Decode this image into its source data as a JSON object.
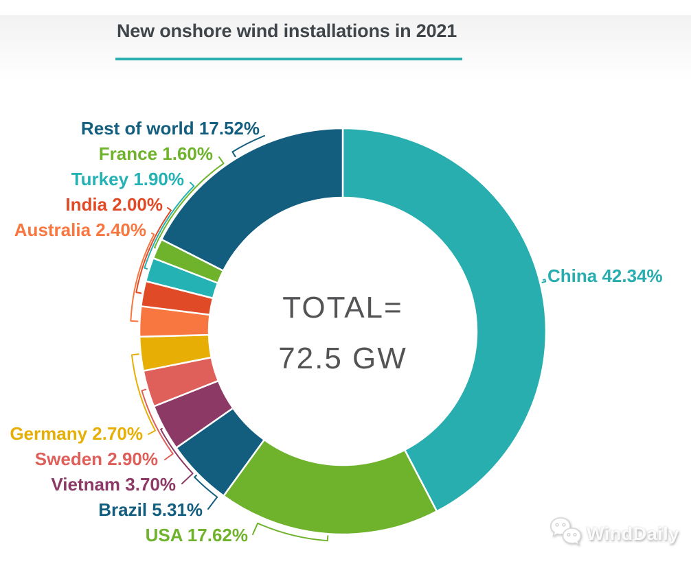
{
  "title": "New onshore wind installations in 2021",
  "colors": {
    "accent": "#2aafb0",
    "title_text": "#404549",
    "center_text": "#545456"
  },
  "center": {
    "line1": "TOTAL=",
    "line2": "72.5 GW"
  },
  "watermark": {
    "brand": "WindDaily",
    "icon": "wechat-icon"
  },
  "chart_data": {
    "type": "pie",
    "subtype": "donut",
    "title": "New onshore wind installations in 2021",
    "total_value": 72.5,
    "total_units": "GW",
    "center_label": "TOTAL= 72.5 GW",
    "value_units": "percent",
    "start_angle_deg": 0,
    "direction": "clockwise",
    "legend_position": "around",
    "slices": [
      {
        "name": "China",
        "value": 42.34,
        "label": "China 42.34%",
        "color": "#29aeb0"
      },
      {
        "name": "USA",
        "value": 17.62,
        "label": "USA 17.62%",
        "color": "#6fb32d"
      },
      {
        "name": "Brazil",
        "value": 5.31,
        "label": "Brazil 5.31%",
        "color": "#135e7f"
      },
      {
        "name": "Vietnam",
        "value": 3.7,
        "label": "Vietnam 3.70%",
        "color": "#8c3a65"
      },
      {
        "name": "Sweden",
        "value": 2.9,
        "label": "Sweden 2.90%",
        "color": "#df5f5a"
      },
      {
        "name": "Germany",
        "value": 2.7,
        "label": "Germany 2.70%",
        "color": "#e7af06"
      },
      {
        "name": "Australia",
        "value": 2.4,
        "label": "Australia 2.40%",
        "color": "#f8763f"
      },
      {
        "name": "India",
        "value": 2.0,
        "label": "India 2.00%",
        "color": "#e14a26"
      },
      {
        "name": "Turkey",
        "value": 1.9,
        "label": "Turkey 1.90%",
        "color": "#24b2b4"
      },
      {
        "name": "France",
        "value": 1.6,
        "label": "France 1.60%",
        "color": "#6fb32d"
      },
      {
        "name": "Rest of world",
        "value": 17.52,
        "label": "Rest of world 17.52%",
        "color": "#135e7f"
      }
    ]
  }
}
